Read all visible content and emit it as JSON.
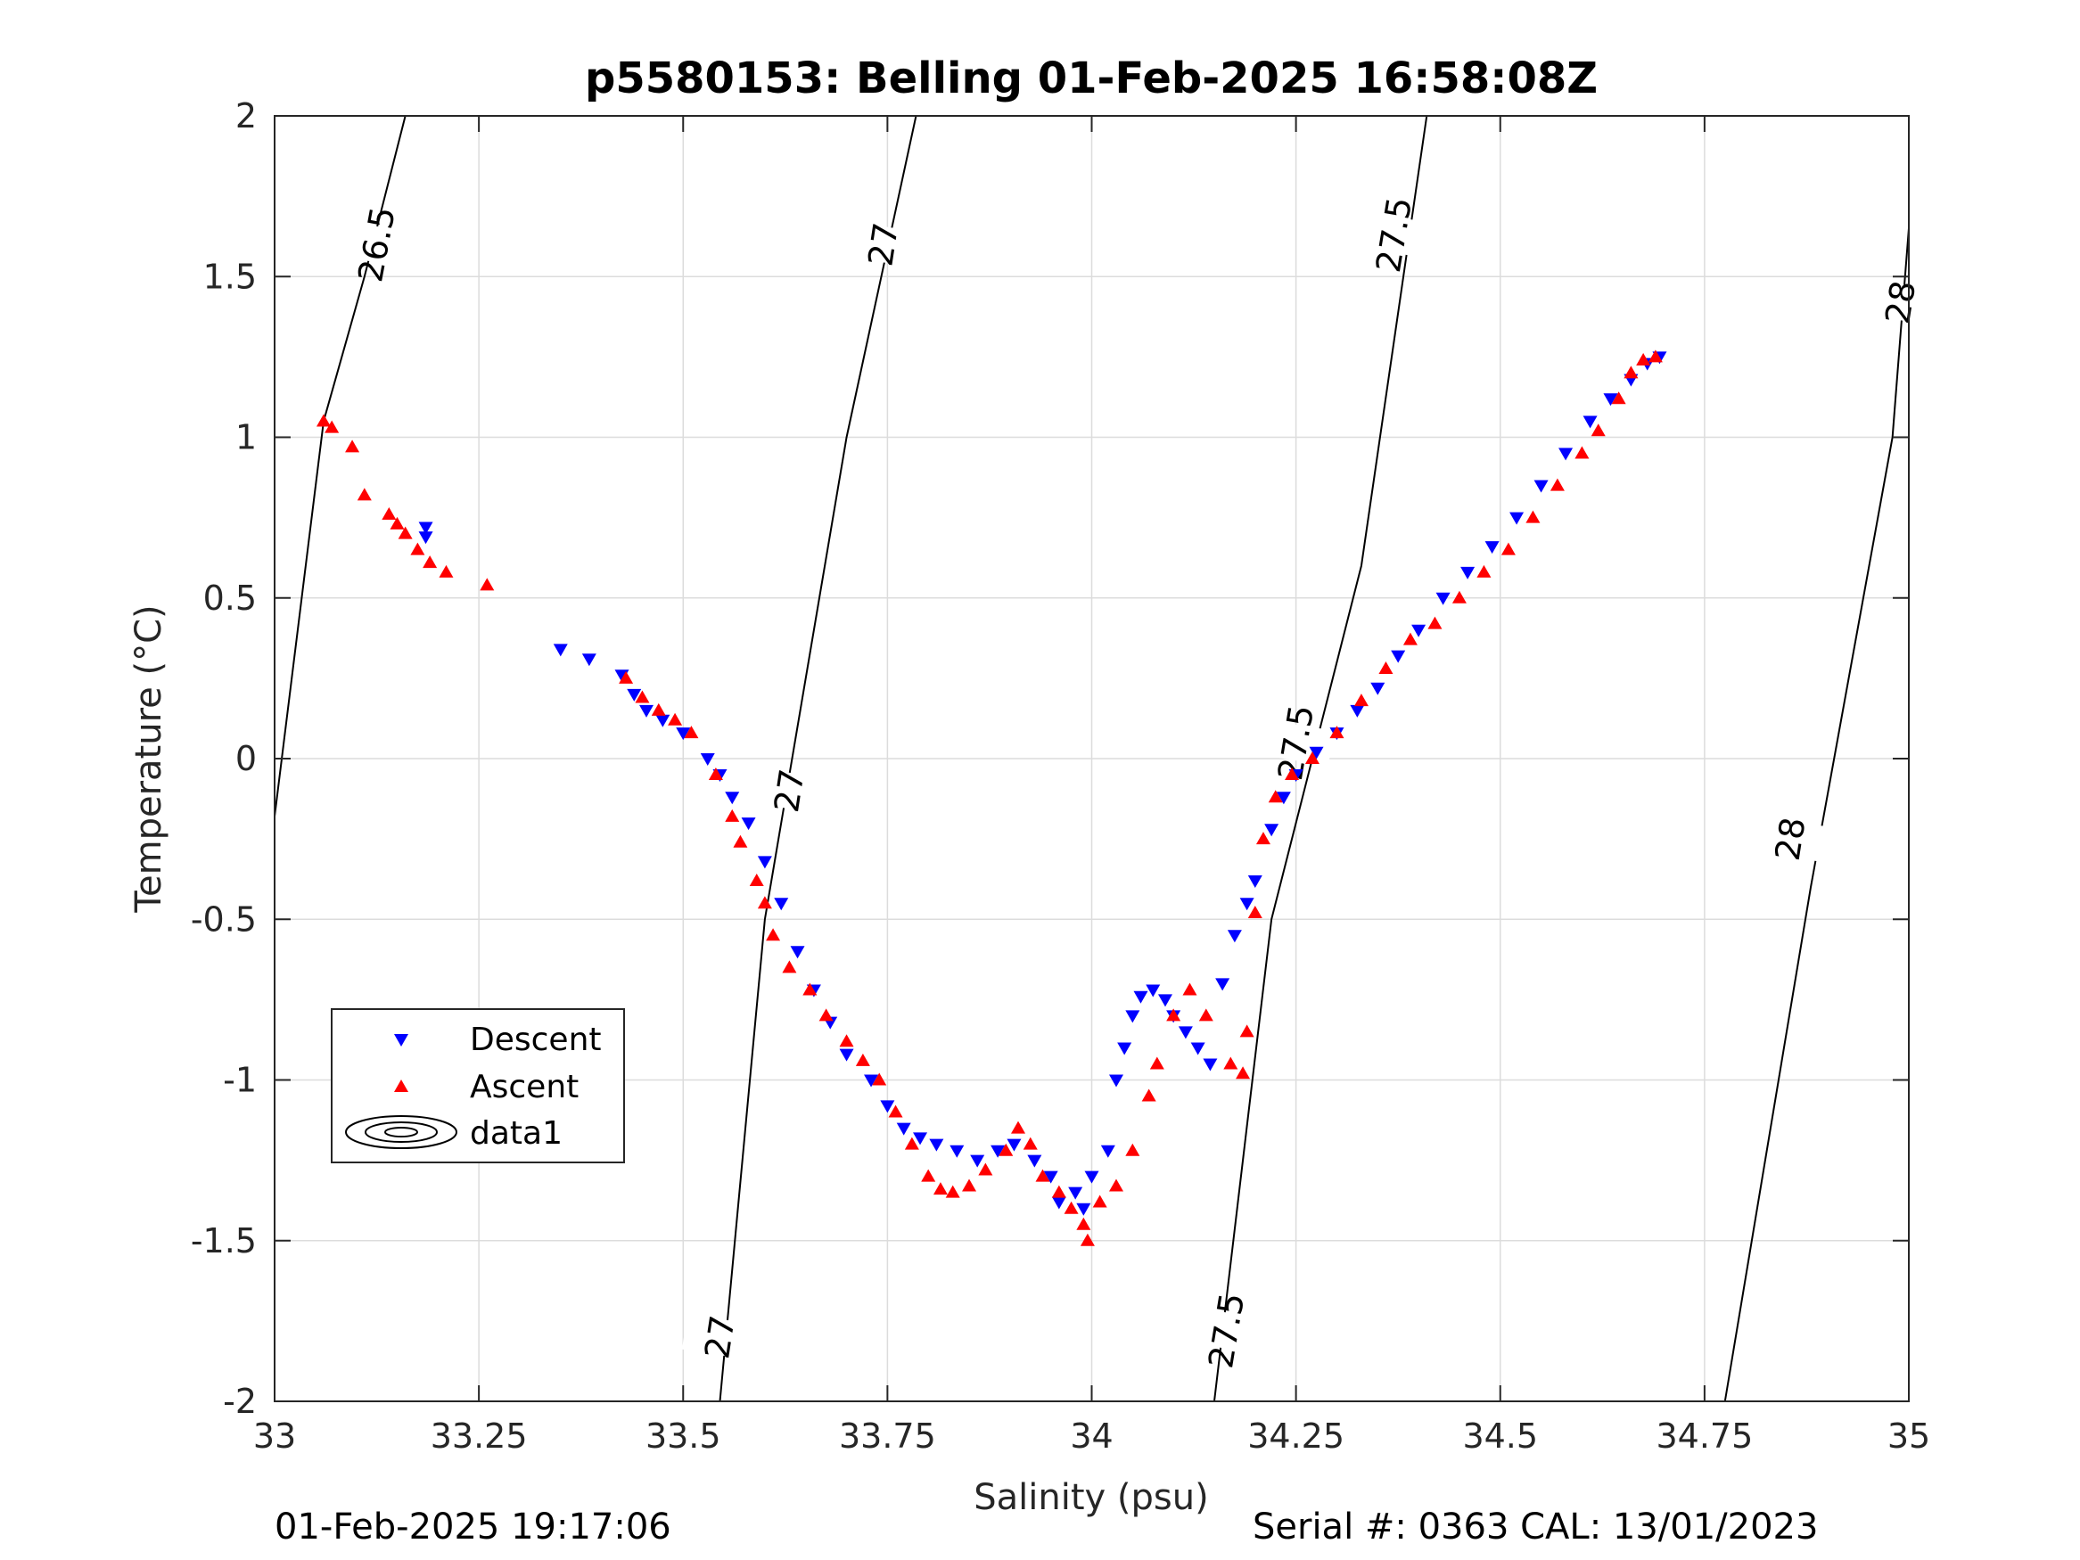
{
  "chart_data": {
    "type": "scatter",
    "title": "p5580153: Belling 01-Feb-2025 16:58:08Z",
    "xlabel": "Salinity (psu)",
    "ylabel": "Temperature (°C)",
    "xlim": [
      33,
      35
    ],
    "ylim": [
      -2,
      2
    ],
    "xticks": [
      33,
      33.25,
      33.5,
      33.75,
      34,
      34.25,
      34.5,
      34.75,
      35
    ],
    "xtick_labels": [
      "33",
      "33.25",
      "33.5",
      "33.75",
      "34",
      "34.25",
      "34.5",
      "34.75",
      "35"
    ],
    "yticks": [
      -2,
      -1.5,
      -1,
      -0.5,
      0,
      0.5,
      1,
      1.5,
      2
    ],
    "ytick_labels": [
      "-2",
      "-1.5",
      "-1",
      "-0.5",
      "0",
      "0.5",
      "1",
      "1.5",
      "2"
    ],
    "grid": true,
    "legend_position": "lower-left",
    "legend": [
      "Descent",
      "Ascent",
      "data1"
    ],
    "colors": {
      "descent": "#0000ff",
      "ascent": "#ff0000",
      "contour": "#000000",
      "grid": "#dcdcdc"
    },
    "contours": [
      {
        "level": "26.5",
        "points": [
          [
            33.0,
            -0.18
          ],
          [
            33.06,
            1.05
          ],
          [
            33.11,
            1.5
          ],
          [
            33.16,
            2.0
          ]
        ],
        "labels": [
          {
            "x": 33.125,
            "y": 1.6
          }
        ]
      },
      {
        "level": "27",
        "points": [
          [
            33.545,
            -2.0
          ],
          [
            33.6,
            -0.5
          ],
          [
            33.7,
            1.0
          ],
          [
            33.785,
            2.0
          ]
        ],
        "labels": [
          {
            "x": 33.545,
            "y": -1.8
          },
          {
            "x": 33.63,
            "y": -0.1
          },
          {
            "x": 33.745,
            "y": 1.6
          }
        ]
      },
      {
        "level": "27.5",
        "points": [
          [
            34.15,
            -2.0
          ],
          [
            34.22,
            -0.5
          ],
          [
            34.33,
            0.6
          ],
          [
            34.41,
            2.0
          ]
        ],
        "labels": [
          {
            "x": 34.165,
            "y": -1.78
          },
          {
            "x": 34.25,
            "y": 0.05
          },
          {
            "x": 34.37,
            "y": 1.63
          }
        ]
      },
      {
        "level": "28",
        "points": [
          [
            34.775,
            -2.0
          ],
          [
            34.88,
            -0.4
          ],
          [
            34.98,
            1.0
          ],
          [
            35.0,
            1.65
          ]
        ],
        "labels": [
          {
            "x": 34.855,
            "y": -0.25
          },
          {
            "x": 34.99,
            "y": 1.42
          }
        ]
      }
    ],
    "series": [
      {
        "name": "Descent",
        "marker": "triangle-down",
        "x": [
          33.185,
          33.185,
          33.35,
          33.385,
          33.425,
          33.44,
          33.455,
          33.475,
          33.5,
          33.53,
          33.545,
          33.56,
          33.58,
          33.6,
          33.62,
          33.64,
          33.66,
          33.68,
          33.7,
          33.73,
          33.75,
          33.77,
          33.79,
          33.81,
          33.835,
          33.86,
          33.885,
          33.905,
          33.93,
          33.95,
          33.96,
          33.98,
          33.99,
          34.0,
          34.02,
          34.03,
          34.04,
          34.05,
          34.06,
          34.075,
          34.09,
          34.1,
          34.115,
          34.13,
          34.145,
          34.16,
          34.175,
          34.19,
          34.2,
          34.22,
          34.235,
          34.25,
          34.275,
          34.3,
          34.325,
          34.35,
          34.375,
          34.4,
          34.43,
          34.46,
          34.49,
          34.52,
          34.55,
          34.58,
          34.61,
          34.635,
          34.66,
          34.68,
          34.695
        ],
        "y": [
          0.72,
          0.69,
          0.34,
          0.31,
          0.26,
          0.2,
          0.15,
          0.12,
          0.08,
          0.0,
          -0.05,
          -0.12,
          -0.2,
          -0.32,
          -0.45,
          -0.6,
          -0.72,
          -0.82,
          -0.92,
          -1.0,
          -1.08,
          -1.15,
          -1.18,
          -1.2,
          -1.22,
          -1.25,
          -1.22,
          -1.2,
          -1.25,
          -1.3,
          -1.38,
          -1.35,
          -1.4,
          -1.3,
          -1.22,
          -1.0,
          -0.9,
          -0.8,
          -0.74,
          -0.72,
          -0.75,
          -0.8,
          -0.85,
          -0.9,
          -0.95,
          -0.7,
          -0.55,
          -0.45,
          -0.38,
          -0.22,
          -0.12,
          -0.05,
          0.02,
          0.08,
          0.15,
          0.22,
          0.32,
          0.4,
          0.5,
          0.58,
          0.66,
          0.75,
          0.85,
          0.95,
          1.05,
          1.12,
          1.18,
          1.23,
          1.25
        ]
      },
      {
        "name": "Ascent",
        "marker": "triangle-up",
        "x": [
          33.06,
          33.07,
          33.095,
          33.11,
          33.14,
          33.15,
          33.16,
          33.175,
          33.19,
          33.21,
          33.26,
          33.43,
          33.45,
          33.47,
          33.49,
          33.51,
          33.54,
          33.56,
          33.57,
          33.59,
          33.6,
          33.61,
          33.63,
          33.655,
          33.675,
          33.7,
          33.72,
          33.74,
          33.76,
          33.78,
          33.8,
          33.815,
          33.83,
          33.85,
          33.87,
          33.895,
          33.91,
          33.925,
          33.94,
          33.96,
          33.975,
          33.99,
          33.995,
          34.01,
          34.03,
          34.05,
          34.07,
          34.08,
          34.1,
          34.12,
          34.14,
          34.17,
          34.185,
          34.19,
          34.2,
          34.21,
          34.225,
          34.245,
          34.27,
          34.3,
          34.33,
          34.36,
          34.39,
          34.42,
          34.45,
          34.48,
          34.51,
          34.54,
          34.57,
          34.6,
          34.62,
          34.645,
          34.66,
          34.675,
          34.69
        ],
        "y": [
          1.05,
          1.03,
          0.97,
          0.82,
          0.76,
          0.73,
          0.7,
          0.65,
          0.61,
          0.58,
          0.54,
          0.25,
          0.19,
          0.15,
          0.12,
          0.08,
          -0.05,
          -0.18,
          -0.26,
          -0.38,
          -0.45,
          -0.55,
          -0.65,
          -0.72,
          -0.8,
          -0.88,
          -0.94,
          -1.0,
          -1.1,
          -1.2,
          -1.3,
          -1.34,
          -1.35,
          -1.33,
          -1.28,
          -1.22,
          -1.15,
          -1.2,
          -1.3,
          -1.35,
          -1.4,
          -1.45,
          -1.5,
          -1.38,
          -1.33,
          -1.22,
          -1.05,
          -0.95,
          -0.8,
          -0.72,
          -0.8,
          -0.95,
          -0.98,
          -0.85,
          -0.48,
          -0.25,
          -0.12,
          -0.05,
          0.0,
          0.08,
          0.18,
          0.28,
          0.37,
          0.42,
          0.5,
          0.58,
          0.65,
          0.75,
          0.85,
          0.95,
          1.02,
          1.12,
          1.2,
          1.24,
          1.25
        ]
      }
    ]
  },
  "footer": {
    "left": "01-Feb-2025 19:17:06",
    "right": "Serial #: 0363  CAL: 13/01/2023"
  }
}
